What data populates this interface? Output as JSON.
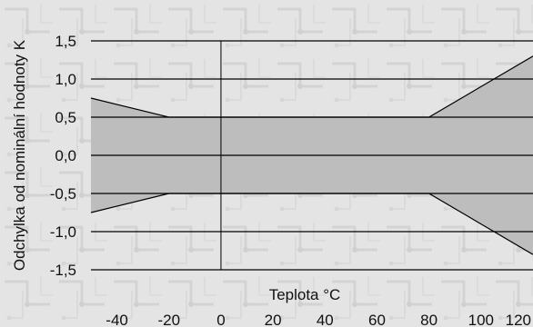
{
  "chart_data": {
    "type": "area",
    "title": "",
    "xlabel": "Teplota °C",
    "ylabel": "Odchylka od nominální hodnoty K",
    "xlim": [
      -50,
      120
    ],
    "ylim": [
      -1.5,
      1.5
    ],
    "x_ticks": [
      "-40",
      "-20",
      "0",
      "20",
      "40",
      "60",
      "80",
      "100",
      "120"
    ],
    "y_ticks": [
      "1,5",
      "1,0",
      "0,5",
      "0,0",
      "-0,5",
      "-1,0",
      "-1,5"
    ],
    "y_tick_values": [
      1.5,
      1.0,
      0.5,
      0.0,
      -0.5,
      -1.0,
      -1.5
    ],
    "x_tick_values": [
      -40,
      -20,
      0,
      20,
      40,
      60,
      80,
      100,
      120
    ],
    "grid": "horizontal",
    "series": [
      {
        "x": [
          -50,
          -20,
          0,
          20,
          40,
          60,
          80,
          100,
          120
        ],
        "upper": [
          0.75,
          0.5,
          0.5,
          0.5,
          0.5,
          0.5,
          0.5,
          0.9,
          1.3
        ],
        "lower": [
          -0.75,
          -0.5,
          -0.5,
          -0.5,
          -0.5,
          -0.5,
          -0.5,
          -0.9,
          -1.3
        ]
      }
    ],
    "colors": {
      "band": "#bdbdbd",
      "lines": "#000000",
      "background": "#e6e6e6"
    }
  }
}
